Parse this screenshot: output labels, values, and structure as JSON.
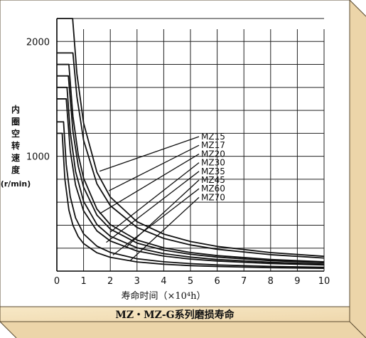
{
  "chart_data": {
    "type": "line",
    "title": "MZ・MZ-G系列磨损寿命",
    "xlabel": "寿命时间（×10⁴h）",
    "ylabel": [
      "内",
      "圈",
      "空",
      "转",
      "速",
      "度"
    ],
    "yunit": "(r/min)",
    "xlim": [
      0,
      10
    ],
    "ylim": [
      0,
      2200
    ],
    "xticks": [
      0,
      1,
      2,
      3,
      4,
      5,
      6,
      7,
      8,
      9,
      10
    ],
    "yticks_labeled": [
      1000,
      2000
    ],
    "grid": true,
    "legend_placement": "center-right",
    "series": [
      {
        "name": "MZ15",
        "x": [
          0.59,
          0.75,
          1.0,
          1.5,
          2.0,
          3.0,
          4.0,
          5.0,
          6.0,
          8.0,
          10.0
        ],
        "y": [
          2200,
          1720,
          1290,
          860,
          645,
          430,
          322,
          258,
          215,
          161,
          129
        ]
      },
      {
        "name": "MZ17",
        "x": [
          0.6,
          0.75,
          1.0,
          1.5,
          2.0,
          3.0,
          4.0,
          5.0,
          6.0,
          8.0,
          10.0
        ],
        "y": [
          1900,
          1520,
          1140,
          760,
          570,
          380,
          285,
          228,
          190,
          143,
          114
        ]
      },
      {
        "name": "MZ20",
        "x": [
          0.45,
          0.6,
          0.8,
          1.0,
          1.5,
          2.0,
          3.0,
          4.0,
          5.0,
          6.0,
          8.0,
          10.0
        ],
        "y": [
          1800,
          1350,
          1013,
          810,
          540,
          405,
          270,
          203,
          162,
          135,
          101,
          81
        ]
      },
      {
        "name": "MZ30",
        "x": [
          0.43,
          0.6,
          0.8,
          1.0,
          1.5,
          2.0,
          3.0,
          4.0,
          5.0,
          6.0,
          8.0,
          10.0
        ],
        "y": [
          1700,
          1218,
          914,
          731,
          487,
          366,
          244,
          183,
          146,
          122,
          91,
          73
        ]
      },
      {
        "name": "MZ35",
        "x": [
          0.38,
          0.5,
          0.7,
          1.0,
          1.5,
          2.0,
          3.0,
          4.0,
          5.0,
          6.0,
          8.0,
          10.0
        ],
        "y": [
          1600,
          1216,
          869,
          608,
          405,
          304,
          203,
          152,
          122,
          101,
          76,
          61
        ]
      },
      {
        "name": "MZ45",
        "x": [
          0.35,
          0.5,
          0.7,
          1.0,
          1.5,
          2.0,
          3.0,
          4.0,
          5.0,
          6.0,
          8.0,
          10.0
        ],
        "y": [
          1500,
          1050,
          750,
          525,
          350,
          263,
          175,
          131,
          105,
          88,
          66,
          53
        ]
      },
      {
        "name": "MZ60",
        "x": [
          0.25,
          0.35,
          0.5,
          0.7,
          1.0,
          1.5,
          2.0,
          3.0,
          4.0,
          5.0,
          6.0,
          8.0,
          10.0
        ],
        "y": [
          1300,
          929,
          650,
          464,
          325,
          217,
          163,
          108,
          81,
          65,
          54,
          41,
          33
        ]
      },
      {
        "name": "MZ70",
        "x": [
          0.2,
          0.3,
          0.45,
          0.6,
          0.8,
          1.0,
          1.5,
          2.0,
          3.0,
          4.0,
          5.0,
          6.0,
          8.0,
          10.0
        ],
        "y": [
          1200,
          800,
          533,
          400,
          300,
          240,
          160,
          120,
          80,
          60,
          48,
          40,
          30,
          24
        ]
      }
    ],
    "leader_targets": [
      {
        "name": "MZ15",
        "x": 1.6,
        "y": 870
      },
      {
        "name": "MZ17",
        "x": 1.95,
        "y": 700
      },
      {
        "name": "MZ20",
        "x": 1.6,
        "y": 500
      },
      {
        "name": "MZ30",
        "x": 2.0,
        "y": 340
      },
      {
        "name": "MZ35",
        "x": 1.85,
        "y": 250
      },
      {
        "name": "MZ45",
        "x": 2.6,
        "y": 210
      },
      {
        "name": "MZ60",
        "x": 2.1,
        "y": 140
      },
      {
        "name": "MZ70",
        "x": 2.75,
        "y": 92
      }
    ]
  }
}
